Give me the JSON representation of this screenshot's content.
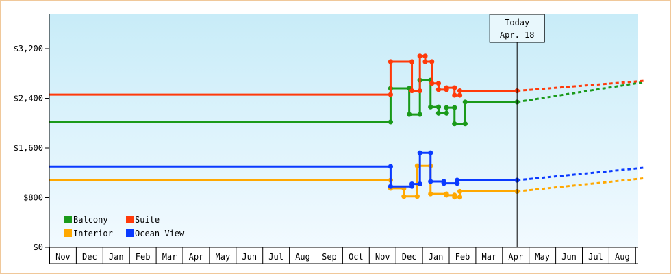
{
  "chart_data": {
    "type": "line",
    "title": "",
    "xlabel": "",
    "ylabel": "",
    "ylim": [
      0,
      3200
    ],
    "y_ticks": [
      {
        "value": 0,
        "label": "$0"
      },
      {
        "value": 800,
        "label": "$800"
      },
      {
        "value": 1600,
        "label": "$1,600"
      },
      {
        "value": 2400,
        "label": "$2,400"
      },
      {
        "value": 3200,
        "label": "$3,200"
      }
    ],
    "x_tick_labels": [
      "Nov",
      "Dec",
      "Jan",
      "Feb",
      "Mar",
      "Apr",
      "May",
      "Jun",
      "Jul",
      "Aug",
      "Sep",
      "Oct",
      "Nov",
      "Dec",
      "Jan",
      "Feb",
      "Mar",
      "Apr",
      "May",
      "Jun",
      "Jul",
      "Aug"
    ],
    "today": {
      "label": "Today",
      "date_label": "Apr. 18",
      "month_index": 17.55
    },
    "grid": false,
    "legend_placement": "bottom-left",
    "series": [
      {
        "name": "Balcony",
        "color": "#1a9a1a",
        "points": [
          [
            0,
            2020
          ],
          [
            12.8,
            2020
          ],
          [
            12.8,
            2560
          ],
          [
            13.5,
            2560
          ],
          [
            13.5,
            2140
          ],
          [
            13.9,
            2140
          ],
          [
            13.9,
            2690
          ],
          [
            14.3,
            2690
          ],
          [
            14.3,
            2260
          ],
          [
            14.6,
            2260
          ],
          [
            14.6,
            2160
          ],
          [
            14.9,
            2160
          ],
          [
            14.9,
            2250
          ],
          [
            15.2,
            2250
          ],
          [
            15.2,
            1990
          ],
          [
            15.6,
            1990
          ],
          [
            15.6,
            2340
          ],
          [
            17.55,
            2340
          ]
        ],
        "forecast": [
          [
            17.55,
            2340
          ],
          [
            22.3,
            2660
          ]
        ]
      },
      {
        "name": "Suite",
        "color": "#ff3a0a",
        "points": [
          [
            0,
            2460
          ],
          [
            12.8,
            2460
          ],
          [
            12.8,
            2990
          ],
          [
            13.6,
            2990
          ],
          [
            13.6,
            2520
          ],
          [
            13.9,
            2520
          ],
          [
            13.9,
            3080
          ],
          [
            14.1,
            3080
          ],
          [
            14.1,
            2990
          ],
          [
            14.35,
            2990
          ],
          [
            14.35,
            2640
          ],
          [
            14.6,
            2640
          ],
          [
            14.6,
            2540
          ],
          [
            14.9,
            2540
          ],
          [
            14.9,
            2570
          ],
          [
            15.2,
            2570
          ],
          [
            15.2,
            2450
          ],
          [
            15.4,
            2450
          ],
          [
            15.4,
            2520
          ],
          [
            17.55,
            2520
          ]
        ],
        "forecast": [
          [
            17.55,
            2520
          ],
          [
            22.3,
            2680
          ]
        ]
      },
      {
        "name": "Interior",
        "color": "#ffa800",
        "points": [
          [
            0,
            1080
          ],
          [
            12.8,
            1080
          ],
          [
            12.8,
            950
          ],
          [
            13.3,
            950
          ],
          [
            13.3,
            820
          ],
          [
            13.8,
            820
          ],
          [
            13.8,
            1310
          ],
          [
            14.3,
            1310
          ],
          [
            14.3,
            860
          ],
          [
            14.9,
            860
          ],
          [
            14.9,
            840
          ],
          [
            15.2,
            840
          ],
          [
            15.2,
            810
          ],
          [
            15.4,
            810
          ],
          [
            15.4,
            900
          ],
          [
            17.55,
            900
          ]
        ],
        "forecast": [
          [
            17.55,
            900
          ],
          [
            22.3,
            1110
          ]
        ]
      },
      {
        "name": "Ocean View",
        "color": "#0a3aff",
        "points": [
          [
            0,
            1300
          ],
          [
            12.8,
            1300
          ],
          [
            12.8,
            980
          ],
          [
            13.6,
            980
          ],
          [
            13.6,
            1020
          ],
          [
            13.9,
            1020
          ],
          [
            13.9,
            1520
          ],
          [
            14.3,
            1520
          ],
          [
            14.3,
            1060
          ],
          [
            14.8,
            1060
          ],
          [
            14.8,
            1030
          ],
          [
            15.3,
            1030
          ],
          [
            15.3,
            1080
          ],
          [
            17.55,
            1080
          ]
        ],
        "forecast": [
          [
            17.55,
            1080
          ],
          [
            22.3,
            1280
          ]
        ]
      }
    ],
    "legend": [
      {
        "name": "Balcony",
        "color": "#1a9a1a"
      },
      {
        "name": "Suite",
        "color": "#ff3a0a"
      },
      {
        "name": "Interior",
        "color": "#ffa800"
      },
      {
        "name": "Ocean View",
        "color": "#0a3aff"
      }
    ]
  }
}
